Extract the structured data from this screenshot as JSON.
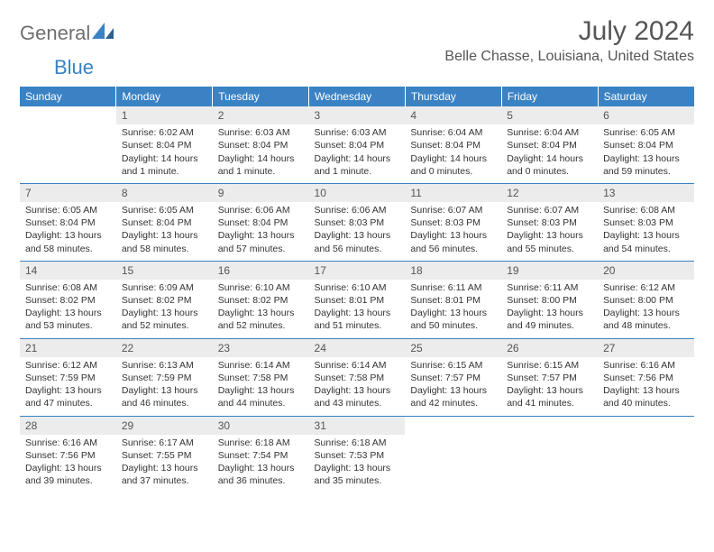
{
  "brand": {
    "part1": "General",
    "part2": "Blue"
  },
  "title": {
    "month": "July 2024",
    "location": "Belle Chasse, Louisiana, United States"
  },
  "colors": {
    "accent": "#3a82c4",
    "headerText": "#ffffff",
    "dayNumBg": "#ececec",
    "body": "#333333"
  },
  "weekdays": [
    "Sunday",
    "Monday",
    "Tuesday",
    "Wednesday",
    "Thursday",
    "Friday",
    "Saturday"
  ],
  "weeks": [
    [
      {
        "num": "",
        "sunrise": "",
        "sunset": "",
        "daylight": ""
      },
      {
        "num": "1",
        "sunrise": "Sunrise: 6:02 AM",
        "sunset": "Sunset: 8:04 PM",
        "daylight": "Daylight: 14 hours and 1 minute."
      },
      {
        "num": "2",
        "sunrise": "Sunrise: 6:03 AM",
        "sunset": "Sunset: 8:04 PM",
        "daylight": "Daylight: 14 hours and 1 minute."
      },
      {
        "num": "3",
        "sunrise": "Sunrise: 6:03 AM",
        "sunset": "Sunset: 8:04 PM",
        "daylight": "Daylight: 14 hours and 1 minute."
      },
      {
        "num": "4",
        "sunrise": "Sunrise: 6:04 AM",
        "sunset": "Sunset: 8:04 PM",
        "daylight": "Daylight: 14 hours and 0 minutes."
      },
      {
        "num": "5",
        "sunrise": "Sunrise: 6:04 AM",
        "sunset": "Sunset: 8:04 PM",
        "daylight": "Daylight: 14 hours and 0 minutes."
      },
      {
        "num": "6",
        "sunrise": "Sunrise: 6:05 AM",
        "sunset": "Sunset: 8:04 PM",
        "daylight": "Daylight: 13 hours and 59 minutes."
      }
    ],
    [
      {
        "num": "7",
        "sunrise": "Sunrise: 6:05 AM",
        "sunset": "Sunset: 8:04 PM",
        "daylight": "Daylight: 13 hours and 58 minutes."
      },
      {
        "num": "8",
        "sunrise": "Sunrise: 6:05 AM",
        "sunset": "Sunset: 8:04 PM",
        "daylight": "Daylight: 13 hours and 58 minutes."
      },
      {
        "num": "9",
        "sunrise": "Sunrise: 6:06 AM",
        "sunset": "Sunset: 8:04 PM",
        "daylight": "Daylight: 13 hours and 57 minutes."
      },
      {
        "num": "10",
        "sunrise": "Sunrise: 6:06 AM",
        "sunset": "Sunset: 8:03 PM",
        "daylight": "Daylight: 13 hours and 56 minutes."
      },
      {
        "num": "11",
        "sunrise": "Sunrise: 6:07 AM",
        "sunset": "Sunset: 8:03 PM",
        "daylight": "Daylight: 13 hours and 56 minutes."
      },
      {
        "num": "12",
        "sunrise": "Sunrise: 6:07 AM",
        "sunset": "Sunset: 8:03 PM",
        "daylight": "Daylight: 13 hours and 55 minutes."
      },
      {
        "num": "13",
        "sunrise": "Sunrise: 6:08 AM",
        "sunset": "Sunset: 8:03 PM",
        "daylight": "Daylight: 13 hours and 54 minutes."
      }
    ],
    [
      {
        "num": "14",
        "sunrise": "Sunrise: 6:08 AM",
        "sunset": "Sunset: 8:02 PM",
        "daylight": "Daylight: 13 hours and 53 minutes."
      },
      {
        "num": "15",
        "sunrise": "Sunrise: 6:09 AM",
        "sunset": "Sunset: 8:02 PM",
        "daylight": "Daylight: 13 hours and 52 minutes."
      },
      {
        "num": "16",
        "sunrise": "Sunrise: 6:10 AM",
        "sunset": "Sunset: 8:02 PM",
        "daylight": "Daylight: 13 hours and 52 minutes."
      },
      {
        "num": "17",
        "sunrise": "Sunrise: 6:10 AM",
        "sunset": "Sunset: 8:01 PM",
        "daylight": "Daylight: 13 hours and 51 minutes."
      },
      {
        "num": "18",
        "sunrise": "Sunrise: 6:11 AM",
        "sunset": "Sunset: 8:01 PM",
        "daylight": "Daylight: 13 hours and 50 minutes."
      },
      {
        "num": "19",
        "sunrise": "Sunrise: 6:11 AM",
        "sunset": "Sunset: 8:00 PM",
        "daylight": "Daylight: 13 hours and 49 minutes."
      },
      {
        "num": "20",
        "sunrise": "Sunrise: 6:12 AM",
        "sunset": "Sunset: 8:00 PM",
        "daylight": "Daylight: 13 hours and 48 minutes."
      }
    ],
    [
      {
        "num": "21",
        "sunrise": "Sunrise: 6:12 AM",
        "sunset": "Sunset: 7:59 PM",
        "daylight": "Daylight: 13 hours and 47 minutes."
      },
      {
        "num": "22",
        "sunrise": "Sunrise: 6:13 AM",
        "sunset": "Sunset: 7:59 PM",
        "daylight": "Daylight: 13 hours and 46 minutes."
      },
      {
        "num": "23",
        "sunrise": "Sunrise: 6:14 AM",
        "sunset": "Sunset: 7:58 PM",
        "daylight": "Daylight: 13 hours and 44 minutes."
      },
      {
        "num": "24",
        "sunrise": "Sunrise: 6:14 AM",
        "sunset": "Sunset: 7:58 PM",
        "daylight": "Daylight: 13 hours and 43 minutes."
      },
      {
        "num": "25",
        "sunrise": "Sunrise: 6:15 AM",
        "sunset": "Sunset: 7:57 PM",
        "daylight": "Daylight: 13 hours and 42 minutes."
      },
      {
        "num": "26",
        "sunrise": "Sunrise: 6:15 AM",
        "sunset": "Sunset: 7:57 PM",
        "daylight": "Daylight: 13 hours and 41 minutes."
      },
      {
        "num": "27",
        "sunrise": "Sunrise: 6:16 AM",
        "sunset": "Sunset: 7:56 PM",
        "daylight": "Daylight: 13 hours and 40 minutes."
      }
    ],
    [
      {
        "num": "28",
        "sunrise": "Sunrise: 6:16 AM",
        "sunset": "Sunset: 7:56 PM",
        "daylight": "Daylight: 13 hours and 39 minutes."
      },
      {
        "num": "29",
        "sunrise": "Sunrise: 6:17 AM",
        "sunset": "Sunset: 7:55 PM",
        "daylight": "Daylight: 13 hours and 37 minutes."
      },
      {
        "num": "30",
        "sunrise": "Sunrise: 6:18 AM",
        "sunset": "Sunset: 7:54 PM",
        "daylight": "Daylight: 13 hours and 36 minutes."
      },
      {
        "num": "31",
        "sunrise": "Sunrise: 6:18 AM",
        "sunset": "Sunset: 7:53 PM",
        "daylight": "Daylight: 13 hours and 35 minutes."
      },
      {
        "num": "",
        "sunrise": "",
        "sunset": "",
        "daylight": ""
      },
      {
        "num": "",
        "sunrise": "",
        "sunset": "",
        "daylight": ""
      },
      {
        "num": "",
        "sunrise": "",
        "sunset": "",
        "daylight": ""
      }
    ]
  ]
}
